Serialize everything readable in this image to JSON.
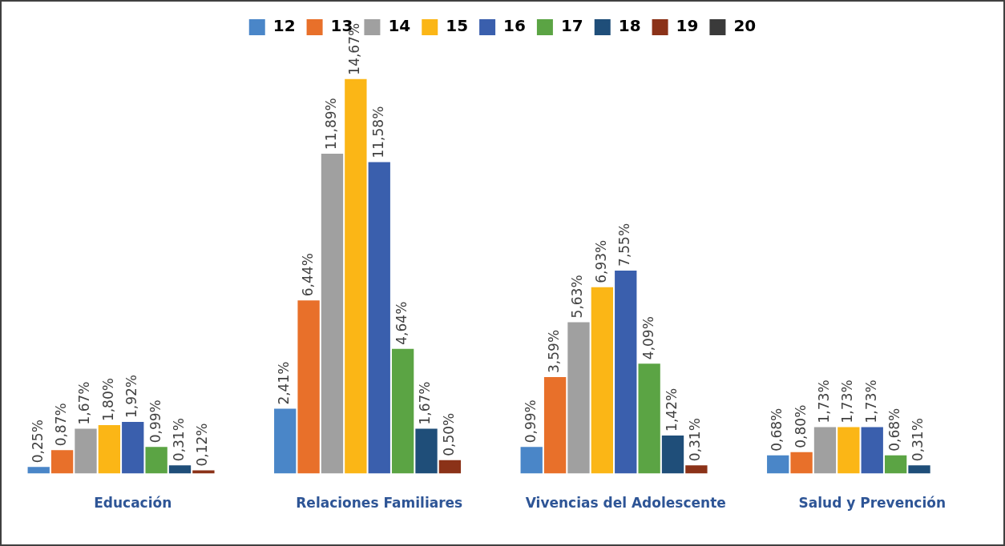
{
  "chart_data": {
    "type": "bar",
    "categories": [
      "Educación",
      "Relaciones Familiares",
      "Vivencias del Adolescente",
      "Salud y Prevención"
    ],
    "series": [
      {
        "name": "12",
        "color": "#4a86c8",
        "values": [
          0.25,
          2.41,
          0.99,
          0.68
        ],
        "value_labels": [
          "0,25%",
          "2,41%",
          "0,99%",
          "0,68%"
        ]
      },
      {
        "name": "13",
        "color": "#e8702a",
        "values": [
          0.87,
          6.44,
          3.59,
          0.8
        ],
        "value_labels": [
          "0,87%",
          "6,44%",
          "3,59%",
          "0,80%"
        ]
      },
      {
        "name": "14",
        "color": "#a0a0a0",
        "values": [
          1.67,
          11.89,
          5.63,
          1.73
        ],
        "value_labels": [
          "1,67%",
          "11,89%",
          "5,63%",
          "1,73%"
        ]
      },
      {
        "name": "15",
        "color": "#fbb616",
        "values": [
          1.8,
          14.67,
          6.93,
          1.73
        ],
        "value_labels": [
          "1,80%",
          "14,67%",
          "6,93%",
          "1,73%"
        ]
      },
      {
        "name": "16",
        "color": "#3a5fad",
        "values": [
          1.92,
          11.58,
          7.55,
          1.73
        ],
        "value_labels": [
          "1,92%",
          "11,58%",
          "7,55%",
          "1,73%"
        ]
      },
      {
        "name": "17",
        "color": "#5ba444",
        "values": [
          0.99,
          4.64,
          4.09,
          0.68
        ],
        "value_labels": [
          "0,99%",
          "4,64%",
          "4,09%",
          "0,68%"
        ]
      },
      {
        "name": "18",
        "color": "#1f4e79",
        "values": [
          0.31,
          1.67,
          1.42,
          0.31
        ],
        "value_labels": [
          "0,31%",
          "1,67%",
          "1,42%",
          "0,31%"
        ]
      },
      {
        "name": "19",
        "color": "#8b3218",
        "values": [
          0.12,
          0.5,
          0.31,
          null
        ],
        "value_labels": [
          "0,12%",
          "0,50%",
          "0,31%",
          null
        ]
      },
      {
        "name": "20",
        "color": "#3a3a3a",
        "values": [
          null,
          null,
          null,
          null
        ],
        "value_labels": [
          null,
          null,
          null,
          null
        ]
      }
    ],
    "legend": "top"
  }
}
